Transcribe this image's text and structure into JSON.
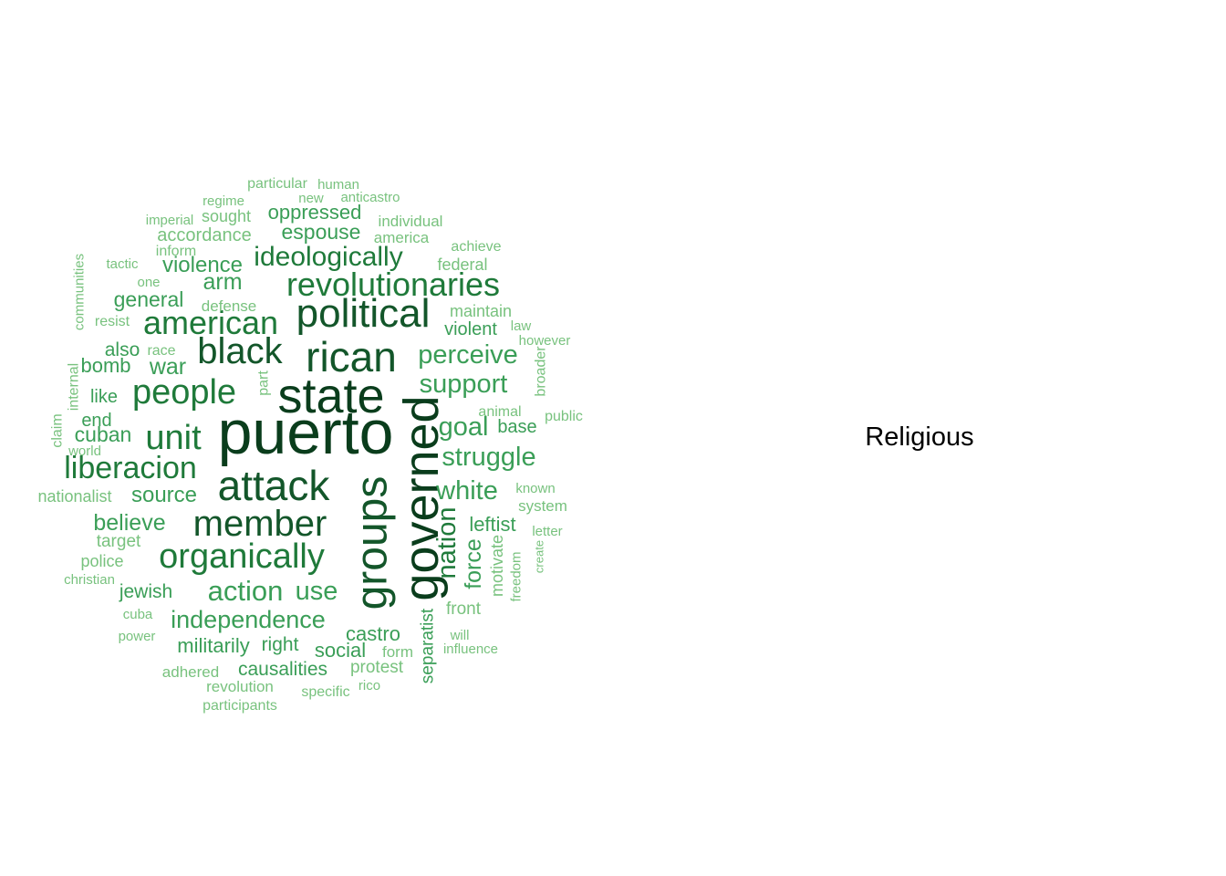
{
  "panel": {
    "label": "Religious"
  },
  "colors": {
    "level1": "#0a3d1c",
    "level2": "#13562a",
    "level3": "#1f7a3a",
    "level4": "#3a9e57",
    "level5": "#78c27e",
    "level6": "#a6d9a3"
  },
  "words": [
    {
      "text": "puerto",
      "color": "level1"
    },
    {
      "text": "state",
      "color": "level1"
    },
    {
      "text": "governed",
      "color": "level1"
    },
    {
      "text": "groups",
      "color": "level2"
    },
    {
      "text": "rican",
      "color": "level2"
    },
    {
      "text": "political",
      "color": "level2"
    },
    {
      "text": "attack",
      "color": "level2"
    },
    {
      "text": "member",
      "color": "level2"
    },
    {
      "text": "black",
      "color": "level2"
    },
    {
      "text": "organically",
      "color": "level3"
    },
    {
      "text": "revolutionaries",
      "color": "level3"
    },
    {
      "text": "american",
      "color": "level3"
    },
    {
      "text": "people",
      "color": "level3"
    },
    {
      "text": "unit",
      "color": "level3"
    },
    {
      "text": "liberacion",
      "color": "level3"
    },
    {
      "text": "ideologically",
      "color": "level3"
    },
    {
      "text": "nation",
      "color": "level3"
    },
    {
      "text": "independence",
      "color": "level4"
    },
    {
      "text": "action",
      "color": "level4"
    },
    {
      "text": "use",
      "color": "level4"
    },
    {
      "text": "perceive",
      "color": "level4"
    },
    {
      "text": "support",
      "color": "level4"
    },
    {
      "text": "goal",
      "color": "level4"
    },
    {
      "text": "struggle",
      "color": "level4"
    },
    {
      "text": "white",
      "color": "level4"
    },
    {
      "text": "force",
      "color": "level4"
    },
    {
      "text": "source",
      "color": "level4"
    },
    {
      "text": "believe",
      "color": "level4"
    },
    {
      "text": "arm",
      "color": "level4"
    },
    {
      "text": "war",
      "color": "level4"
    },
    {
      "text": "violence",
      "color": "level4"
    },
    {
      "text": "espouse",
      "color": "level4"
    },
    {
      "text": "oppressed",
      "color": "level4"
    },
    {
      "text": "general",
      "color": "level4"
    },
    {
      "text": "cuban",
      "color": "level4"
    },
    {
      "text": "bomb",
      "color": "level4"
    },
    {
      "text": "also",
      "color": "level4"
    },
    {
      "text": "castro",
      "color": "level4"
    },
    {
      "text": "social",
      "color": "level4"
    },
    {
      "text": "right",
      "color": "level4"
    },
    {
      "text": "militarily",
      "color": "level4"
    },
    {
      "text": "causalities",
      "color": "level4"
    },
    {
      "text": "jewish",
      "color": "level4"
    },
    {
      "text": "leftist",
      "color": "level4"
    },
    {
      "text": "violent",
      "color": "level4"
    },
    {
      "text": "base",
      "color": "level4"
    },
    {
      "text": "separatist",
      "color": "level4"
    },
    {
      "text": "like",
      "color": "level4"
    },
    {
      "text": "end",
      "color": "level4"
    },
    {
      "text": "motivate",
      "color": "level5"
    },
    {
      "text": "front",
      "color": "level5"
    },
    {
      "text": "protest",
      "color": "level5"
    },
    {
      "text": "form",
      "color": "level5"
    },
    {
      "text": "maintain",
      "color": "level5"
    },
    {
      "text": "federal",
      "color": "level5"
    },
    {
      "text": "achieve",
      "color": "level5"
    },
    {
      "text": "individual",
      "color": "level5"
    },
    {
      "text": "america",
      "color": "level5"
    },
    {
      "text": "anticastro",
      "color": "level5"
    },
    {
      "text": "new",
      "color": "level5"
    },
    {
      "text": "particular",
      "color": "level5"
    },
    {
      "text": "human",
      "color": "level5"
    },
    {
      "text": "regime",
      "color": "level5"
    },
    {
      "text": "imperial",
      "color": "level5"
    },
    {
      "text": "sought",
      "color": "level5"
    },
    {
      "text": "accordance",
      "color": "level5"
    },
    {
      "text": "inform",
      "color": "level5"
    },
    {
      "text": "tactic",
      "color": "level5"
    },
    {
      "text": "one",
      "color": "level5"
    },
    {
      "text": "defense",
      "color": "level5"
    },
    {
      "text": "resist",
      "color": "level5"
    },
    {
      "text": "race",
      "color": "level5"
    },
    {
      "text": "part",
      "color": "level5"
    },
    {
      "text": "internal",
      "color": "level5"
    },
    {
      "text": "communities",
      "color": "level5"
    },
    {
      "text": "claim",
      "color": "level5"
    },
    {
      "text": "world",
      "color": "level5"
    },
    {
      "text": "nationalist",
      "color": "level5"
    },
    {
      "text": "target",
      "color": "level5"
    },
    {
      "text": "police",
      "color": "level5"
    },
    {
      "text": "christian",
      "color": "level5"
    },
    {
      "text": "cuba",
      "color": "level5"
    },
    {
      "text": "power",
      "color": "level5"
    },
    {
      "text": "adhered",
      "color": "level5"
    },
    {
      "text": "revolution",
      "color": "level5"
    },
    {
      "text": "participants",
      "color": "level5"
    },
    {
      "text": "specific",
      "color": "level5"
    },
    {
      "text": "rico",
      "color": "level5"
    },
    {
      "text": "will",
      "color": "level5"
    },
    {
      "text": "influence",
      "color": "level5"
    },
    {
      "text": "law",
      "color": "level5"
    },
    {
      "text": "however",
      "color": "level5"
    },
    {
      "text": "broader",
      "color": "level5"
    },
    {
      "text": "animal",
      "color": "level5"
    },
    {
      "text": "public",
      "color": "level5"
    },
    {
      "text": "known",
      "color": "level5"
    },
    {
      "text": "system",
      "color": "level5"
    },
    {
      "text": "letter",
      "color": "level5"
    },
    {
      "text": "create",
      "color": "level5"
    },
    {
      "text": "freedom",
      "color": "level5"
    }
  ]
}
